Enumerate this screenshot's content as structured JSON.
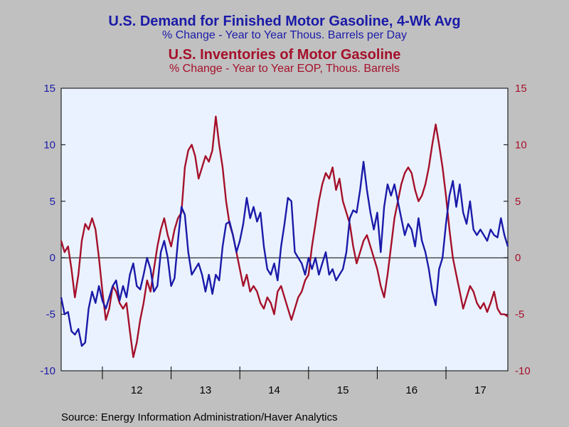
{
  "chart_data": {
    "type": "line",
    "titles": [
      {
        "text": "U.S. Demand for Finished Motor Gasoline, 4-Wk Avg",
        "subtitle": "% Change - Year to Year     Thous. Barrels per Day",
        "color": "#1a1aa8"
      },
      {
        "text": "U.S. Inventories of Motor Gasoline",
        "subtitle": "% Change - Year to Year     EOP, Thous. Barrels",
        "color": "#a5102a"
      }
    ],
    "source": "Source:  Energy Information Administration/Haver Analytics",
    "x_range": [
      2011.4,
      2017.9
    ],
    "x_ticks": [
      {
        "label": "12",
        "x": 2012.5
      },
      {
        "label": "13",
        "x": 2013.5
      },
      {
        "label": "14",
        "x": 2014.5
      },
      {
        "label": "15",
        "x": 2015.5
      },
      {
        "label": "16",
        "x": 2016.5
      },
      {
        "label": "17",
        "x": 2017.5
      }
    ],
    "year_boundaries": [
      2012,
      2013,
      2014,
      2015,
      2016,
      2017
    ],
    "ylim": [
      -10,
      15
    ],
    "y_ticks": [
      -10,
      -5,
      0,
      5,
      10,
      15
    ],
    "zero_line": true,
    "grid": false,
    "series": [
      {
        "color": "#1a1aa8",
        "points": [
          [
            2011.4,
            -3.5
          ],
          [
            2011.45,
            -5.0
          ],
          [
            2011.5,
            -4.8
          ],
          [
            2011.55,
            -6.5
          ],
          [
            2011.6,
            -6.8
          ],
          [
            2011.65,
            -6.3
          ],
          [
            2011.7,
            -7.8
          ],
          [
            2011.75,
            -7.5
          ],
          [
            2011.8,
            -4.5
          ],
          [
            2011.85,
            -3.0
          ],
          [
            2011.9,
            -4.0
          ],
          [
            2011.95,
            -2.5
          ],
          [
            2012.0,
            -3.8
          ],
          [
            2012.05,
            -4.5
          ],
          [
            2012.1,
            -3.5
          ],
          [
            2012.15,
            -2.5
          ],
          [
            2012.2,
            -2.0
          ],
          [
            2012.25,
            -3.8
          ],
          [
            2012.3,
            -2.5
          ],
          [
            2012.35,
            -3.5
          ],
          [
            2012.4,
            -1.5
          ],
          [
            2012.45,
            -0.5
          ],
          [
            2012.5,
            -2.5
          ],
          [
            2012.55,
            -2.8
          ],
          [
            2012.6,
            -1.5
          ],
          [
            2012.65,
            0.0
          ],
          [
            2012.7,
            -1.0
          ],
          [
            2012.75,
            -3.0
          ],
          [
            2012.8,
            -2.5
          ],
          [
            2012.85,
            0.5
          ],
          [
            2012.9,
            1.5
          ],
          [
            2012.95,
            0.0
          ],
          [
            2013.0,
            -2.5
          ],
          [
            2013.05,
            -1.8
          ],
          [
            2013.1,
            1.5
          ],
          [
            2013.15,
            4.5
          ],
          [
            2013.2,
            3.8
          ],
          [
            2013.25,
            0.5
          ],
          [
            2013.3,
            -1.5
          ],
          [
            2013.35,
            -1.0
          ],
          [
            2013.4,
            -0.5
          ],
          [
            2013.45,
            -1.5
          ],
          [
            2013.5,
            -3.0
          ],
          [
            2013.55,
            -1.5
          ],
          [
            2013.6,
            -3.2
          ],
          [
            2013.65,
            -1.5
          ],
          [
            2013.7,
            -2.0
          ],
          [
            2013.75,
            1.0
          ],
          [
            2013.8,
            3.0
          ],
          [
            2013.85,
            3.2
          ],
          [
            2013.9,
            2.0
          ],
          [
            2013.95,
            0.5
          ],
          [
            2014.0,
            1.5
          ],
          [
            2014.05,
            3.0
          ],
          [
            2014.1,
            5.3
          ],
          [
            2014.15,
            3.5
          ],
          [
            2014.2,
            4.5
          ],
          [
            2014.25,
            3.2
          ],
          [
            2014.3,
            4.0
          ],
          [
            2014.35,
            1.0
          ],
          [
            2014.4,
            -1.0
          ],
          [
            2014.45,
            -1.5
          ],
          [
            2014.5,
            -0.5
          ],
          [
            2014.55,
            -2.0
          ],
          [
            2014.6,
            1.0
          ],
          [
            2014.65,
            3.0
          ],
          [
            2014.7,
            5.3
          ],
          [
            2014.75,
            5.0
          ],
          [
            2014.8,
            0.5
          ],
          [
            2014.85,
            0.0
          ],
          [
            2014.9,
            -0.5
          ],
          [
            2014.95,
            -1.5
          ],
          [
            2015.0,
            0.0
          ],
          [
            2015.05,
            -1.0
          ],
          [
            2015.1,
            0.0
          ],
          [
            2015.15,
            -1.5
          ],
          [
            2015.2,
            -0.5
          ],
          [
            2015.25,
            0.5
          ],
          [
            2015.3,
            -1.5
          ],
          [
            2015.35,
            -1.0
          ],
          [
            2015.4,
            -2.0
          ],
          [
            2015.45,
            -1.5
          ],
          [
            2015.5,
            -1.0
          ],
          [
            2015.55,
            0.5
          ],
          [
            2015.6,
            3.5
          ],
          [
            2015.65,
            4.2
          ],
          [
            2015.7,
            4.0
          ],
          [
            2015.75,
            6.0
          ],
          [
            2015.8,
            8.5
          ],
          [
            2015.85,
            6.0
          ],
          [
            2015.9,
            4.0
          ],
          [
            2015.95,
            2.5
          ],
          [
            2016.0,
            4.0
          ],
          [
            2016.05,
            0.5
          ],
          [
            2016.1,
            4.5
          ],
          [
            2016.15,
            6.5
          ],
          [
            2016.2,
            5.5
          ],
          [
            2016.25,
            6.5
          ],
          [
            2016.3,
            5.0
          ],
          [
            2016.35,
            3.5
          ],
          [
            2016.4,
            2.0
          ],
          [
            2016.45,
            3.0
          ],
          [
            2016.5,
            2.5
          ],
          [
            2016.55,
            1.0
          ],
          [
            2016.6,
            3.5
          ],
          [
            2016.65,
            1.5
          ],
          [
            2016.7,
            0.5
          ],
          [
            2016.75,
            -1.0
          ],
          [
            2016.8,
            -3.0
          ],
          [
            2016.85,
            -4.2
          ],
          [
            2016.9,
            -1.0
          ],
          [
            2016.95,
            0.0
          ],
          [
            2017.0,
            3.0
          ],
          [
            2017.05,
            5.5
          ],
          [
            2017.1,
            6.8
          ],
          [
            2017.15,
            4.5
          ],
          [
            2017.2,
            6.5
          ],
          [
            2017.25,
            4.0
          ],
          [
            2017.3,
            3.0
          ],
          [
            2017.35,
            5.0
          ],
          [
            2017.4,
            2.5
          ],
          [
            2017.45,
            2.0
          ],
          [
            2017.5,
            2.5
          ],
          [
            2017.55,
            2.0
          ],
          [
            2017.6,
            1.5
          ],
          [
            2017.65,
            2.5
          ],
          [
            2017.7,
            2.0
          ],
          [
            2017.75,
            1.8
          ],
          [
            2017.8,
            3.5
          ],
          [
            2017.85,
            2.0
          ],
          [
            2017.9,
            1.0
          ]
        ]
      },
      {
        "color": "#a5102a",
        "points": [
          [
            2011.4,
            1.5
          ],
          [
            2011.45,
            0.5
          ],
          [
            2011.5,
            1.0
          ],
          [
            2011.55,
            -1.0
          ],
          [
            2011.6,
            -3.5
          ],
          [
            2011.65,
            -1.5
          ],
          [
            2011.7,
            1.5
          ],
          [
            2011.75,
            3.0
          ],
          [
            2011.8,
            2.5
          ],
          [
            2011.85,
            3.5
          ],
          [
            2011.9,
            2.5
          ],
          [
            2011.95,
            0.0
          ],
          [
            2012.0,
            -3.0
          ],
          [
            2012.05,
            -5.5
          ],
          [
            2012.1,
            -4.5
          ],
          [
            2012.15,
            -2.5
          ],
          [
            2012.2,
            -3.0
          ],
          [
            2012.25,
            -4.0
          ],
          [
            2012.3,
            -4.5
          ],
          [
            2012.35,
            -4.0
          ],
          [
            2012.4,
            -6.5
          ],
          [
            2012.45,
            -8.8
          ],
          [
            2012.5,
            -7.5
          ],
          [
            2012.55,
            -5.5
          ],
          [
            2012.6,
            -4.0
          ],
          [
            2012.65,
            -2.0
          ],
          [
            2012.7,
            -3.0
          ],
          [
            2012.75,
            -1.0
          ],
          [
            2012.8,
            1.0
          ],
          [
            2012.85,
            2.5
          ],
          [
            2012.9,
            3.5
          ],
          [
            2012.95,
            2.0
          ],
          [
            2013.0,
            1.0
          ],
          [
            2013.05,
            2.5
          ],
          [
            2013.1,
            3.5
          ],
          [
            2013.15,
            4.0
          ],
          [
            2013.2,
            8.0
          ],
          [
            2013.25,
            9.5
          ],
          [
            2013.3,
            10.0
          ],
          [
            2013.35,
            9.0
          ],
          [
            2013.4,
            7.0
          ],
          [
            2013.45,
            8.0
          ],
          [
            2013.5,
            9.0
          ],
          [
            2013.55,
            8.5
          ],
          [
            2013.6,
            9.5
          ],
          [
            2013.65,
            12.5
          ],
          [
            2013.7,
            10.0
          ],
          [
            2013.75,
            8.0
          ],
          [
            2013.8,
            5.0
          ],
          [
            2013.85,
            3.0
          ],
          [
            2013.9,
            2.0
          ],
          [
            2013.95,
            0.5
          ],
          [
            2014.0,
            -1.0
          ],
          [
            2014.05,
            -2.5
          ],
          [
            2014.1,
            -1.5
          ],
          [
            2014.15,
            -3.0
          ],
          [
            2014.2,
            -2.5
          ],
          [
            2014.25,
            -3.0
          ],
          [
            2014.3,
            -4.0
          ],
          [
            2014.35,
            -4.5
          ],
          [
            2014.4,
            -3.5
          ],
          [
            2014.45,
            -4.0
          ],
          [
            2014.5,
            -5.0
          ],
          [
            2014.55,
            -3.0
          ],
          [
            2014.6,
            -2.5
          ],
          [
            2014.65,
            -3.5
          ],
          [
            2014.7,
            -4.5
          ],
          [
            2014.75,
            -5.5
          ],
          [
            2014.8,
            -4.5
          ],
          [
            2014.85,
            -3.5
          ],
          [
            2014.9,
            -3.0
          ],
          [
            2014.95,
            -2.0
          ],
          [
            2015.0,
            -1.5
          ],
          [
            2015.05,
            1.0
          ],
          [
            2015.1,
            3.0
          ],
          [
            2015.15,
            5.0
          ],
          [
            2015.2,
            6.5
          ],
          [
            2015.25,
            7.5
          ],
          [
            2015.3,
            7.0
          ],
          [
            2015.35,
            8.0
          ],
          [
            2015.4,
            6.0
          ],
          [
            2015.45,
            7.0
          ],
          [
            2015.5,
            5.0
          ],
          [
            2015.55,
            4.0
          ],
          [
            2015.6,
            3.0
          ],
          [
            2015.65,
            1.0
          ],
          [
            2015.7,
            -0.5
          ],
          [
            2015.75,
            0.5
          ],
          [
            2015.8,
            1.5
          ],
          [
            2015.85,
            2.0
          ],
          [
            2015.9,
            1.0
          ],
          [
            2015.95,
            0.0
          ],
          [
            2016.0,
            -1.0
          ],
          [
            2016.05,
            -2.5
          ],
          [
            2016.1,
            -3.5
          ],
          [
            2016.15,
            -1.5
          ],
          [
            2016.2,
            1.0
          ],
          [
            2016.25,
            3.5
          ],
          [
            2016.3,
            5.0
          ],
          [
            2016.35,
            6.5
          ],
          [
            2016.4,
            7.5
          ],
          [
            2016.45,
            8.0
          ],
          [
            2016.5,
            7.5
          ],
          [
            2016.55,
            6.0
          ],
          [
            2016.6,
            5.0
          ],
          [
            2016.65,
            5.5
          ],
          [
            2016.7,
            6.5
          ],
          [
            2016.75,
            8.0
          ],
          [
            2016.8,
            10.0
          ],
          [
            2016.85,
            11.8
          ],
          [
            2016.9,
            10.0
          ],
          [
            2016.95,
            8.0
          ],
          [
            2017.0,
            5.5
          ],
          [
            2017.05,
            2.5
          ],
          [
            2017.1,
            0.0
          ],
          [
            2017.15,
            -1.5
          ],
          [
            2017.2,
            -3.0
          ],
          [
            2017.25,
            -4.5
          ],
          [
            2017.3,
            -3.5
          ],
          [
            2017.35,
            -2.5
          ],
          [
            2017.4,
            -3.0
          ],
          [
            2017.45,
            -4.0
          ],
          [
            2017.5,
            -4.5
          ],
          [
            2017.55,
            -4.0
          ],
          [
            2017.6,
            -4.8
          ],
          [
            2017.65,
            -4.0
          ],
          [
            2017.7,
            -3.0
          ],
          [
            2017.75,
            -4.5
          ],
          [
            2017.8,
            -5.0
          ],
          [
            2017.85,
            -5.0
          ],
          [
            2017.9,
            -5.2
          ]
        ]
      }
    ]
  }
}
